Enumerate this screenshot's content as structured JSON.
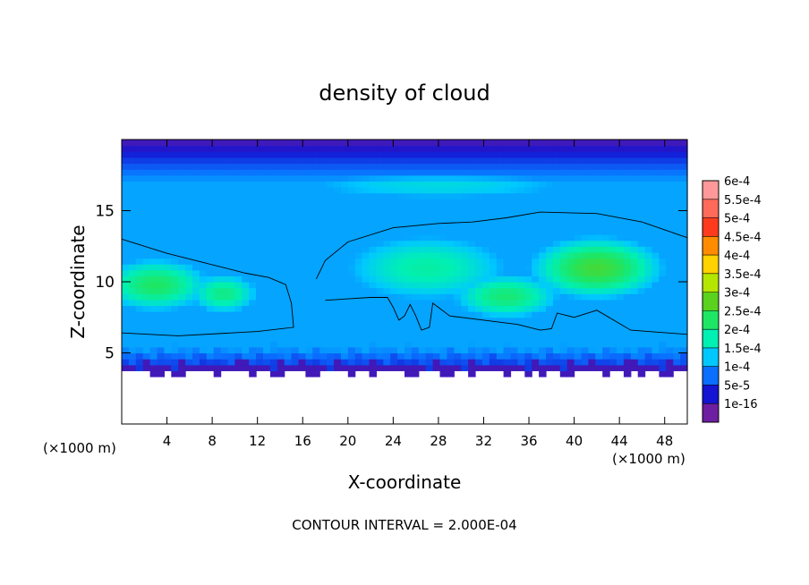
{
  "chart_data": {
    "type": "heatmap",
    "title": "density of cloud",
    "xlabel": "X-coordinate",
    "ylabel": "Z-coordinate",
    "x_unit": "(×1000 m)",
    "y_unit": "(×1000 m)",
    "xlim": [
      0,
      50
    ],
    "ylim": [
      0,
      20
    ],
    "x_ticks": [
      4,
      8,
      12,
      16,
      20,
      24,
      28,
      32,
      36,
      40,
      44,
      48
    ],
    "y_ticks": [
      5,
      10,
      15
    ],
    "footer": "CONTOUR INTERVAL = 2.000E-04",
    "colorbar": {
      "labels": [
        "6e-4",
        "5.5e-4",
        "5e-4",
        "4.5e-4",
        "4e-4",
        "3.5e-4",
        "3e-4",
        "2.5e-4",
        "2e-4",
        "1.5e-4",
        "1e-4",
        "5e-5",
        "1e-16"
      ],
      "levels": [
        0.0006,
        0.00055,
        0.0005,
        0.00045,
        0.0004,
        0.00035,
        0.0003,
        0.00025,
        0.0002,
        0.00015,
        0.0001,
        5e-05,
        1e-16
      ],
      "colors": [
        "#ff9999",
        "#ff6a5a",
        "#ff3b1e",
        "#ff8c00",
        "#ffd200",
        "#b4e600",
        "#5ad21e",
        "#1ee664",
        "#00f0b4",
        "#00c8ff",
        "#0a6eff",
        "#1414d2",
        "#6e1ea0"
      ]
    },
    "contour_value": 0.0002,
    "contours": [
      [
        [
          0,
          13.0
        ],
        [
          4,
          12.0
        ],
        [
          8,
          11.2
        ],
        [
          11,
          10.6
        ],
        [
          13,
          10.3
        ],
        [
          14.5,
          9.8
        ],
        [
          15,
          8.5
        ],
        [
          15.2,
          6.8
        ],
        [
          12,
          6.5
        ],
        [
          5,
          6.2
        ],
        [
          0,
          6.4
        ]
      ],
      [
        [
          17.2,
          10.2
        ],
        [
          18,
          11.5
        ],
        [
          20,
          12.8
        ],
        [
          24,
          13.8
        ],
        [
          28,
          14.1
        ],
        [
          31,
          14.2
        ],
        [
          34,
          14.5
        ],
        [
          37,
          14.9
        ],
        [
          42,
          14.8
        ],
        [
          46,
          14.2
        ],
        [
          50,
          13.1
        ],
        [
          50,
          6.3
        ],
        [
          45,
          6.6
        ],
        [
          42,
          8.0
        ],
        [
          40,
          7.5
        ],
        [
          38.5,
          7.8
        ],
        [
          38,
          6.7
        ],
        [
          37,
          6.6
        ],
        [
          35,
          7.0
        ],
        [
          32,
          7.3
        ],
        [
          29,
          7.6
        ],
        [
          28,
          8.2
        ],
        [
          27.5,
          8.5
        ],
        [
          27.2,
          6.8
        ],
        [
          26.5,
          6.6
        ],
        [
          26,
          7.6
        ],
        [
          25.5,
          8.4
        ],
        [
          25,
          7.6
        ],
        [
          24.5,
          7.3
        ],
        [
          24,
          8.2
        ],
        [
          23.5,
          8.9
        ],
        [
          22,
          8.9
        ],
        [
          20,
          8.8
        ],
        [
          18,
          8.7
        ]
      ]
    ],
    "field_blobs": [
      {
        "x": 3,
        "z": 9.8,
        "sx": 6,
        "sz": 2.3,
        "value": 0.00025
      },
      {
        "x": 9,
        "z": 9.2,
        "sx": 4,
        "sz": 1.8,
        "value": 0.00023
      },
      {
        "x": 42,
        "z": 11.0,
        "sx": 7,
        "sz": 2.6,
        "value": 0.00028
      },
      {
        "x": 34,
        "z": 9.0,
        "sx": 6,
        "sz": 2.0,
        "value": 0.00024
      },
      {
        "x": 27,
        "z": 11.0,
        "sx": 10,
        "sz": 3.2,
        "value": 0.00021
      },
      {
        "x": 28,
        "z": 16.8,
        "sx": 20,
        "sz": 1.6,
        "value": 0.00017
      },
      {
        "x": 7,
        "z": 13.8,
        "sx": 4,
        "sz": 1.0,
        "value": 0.0001
      }
    ]
  }
}
